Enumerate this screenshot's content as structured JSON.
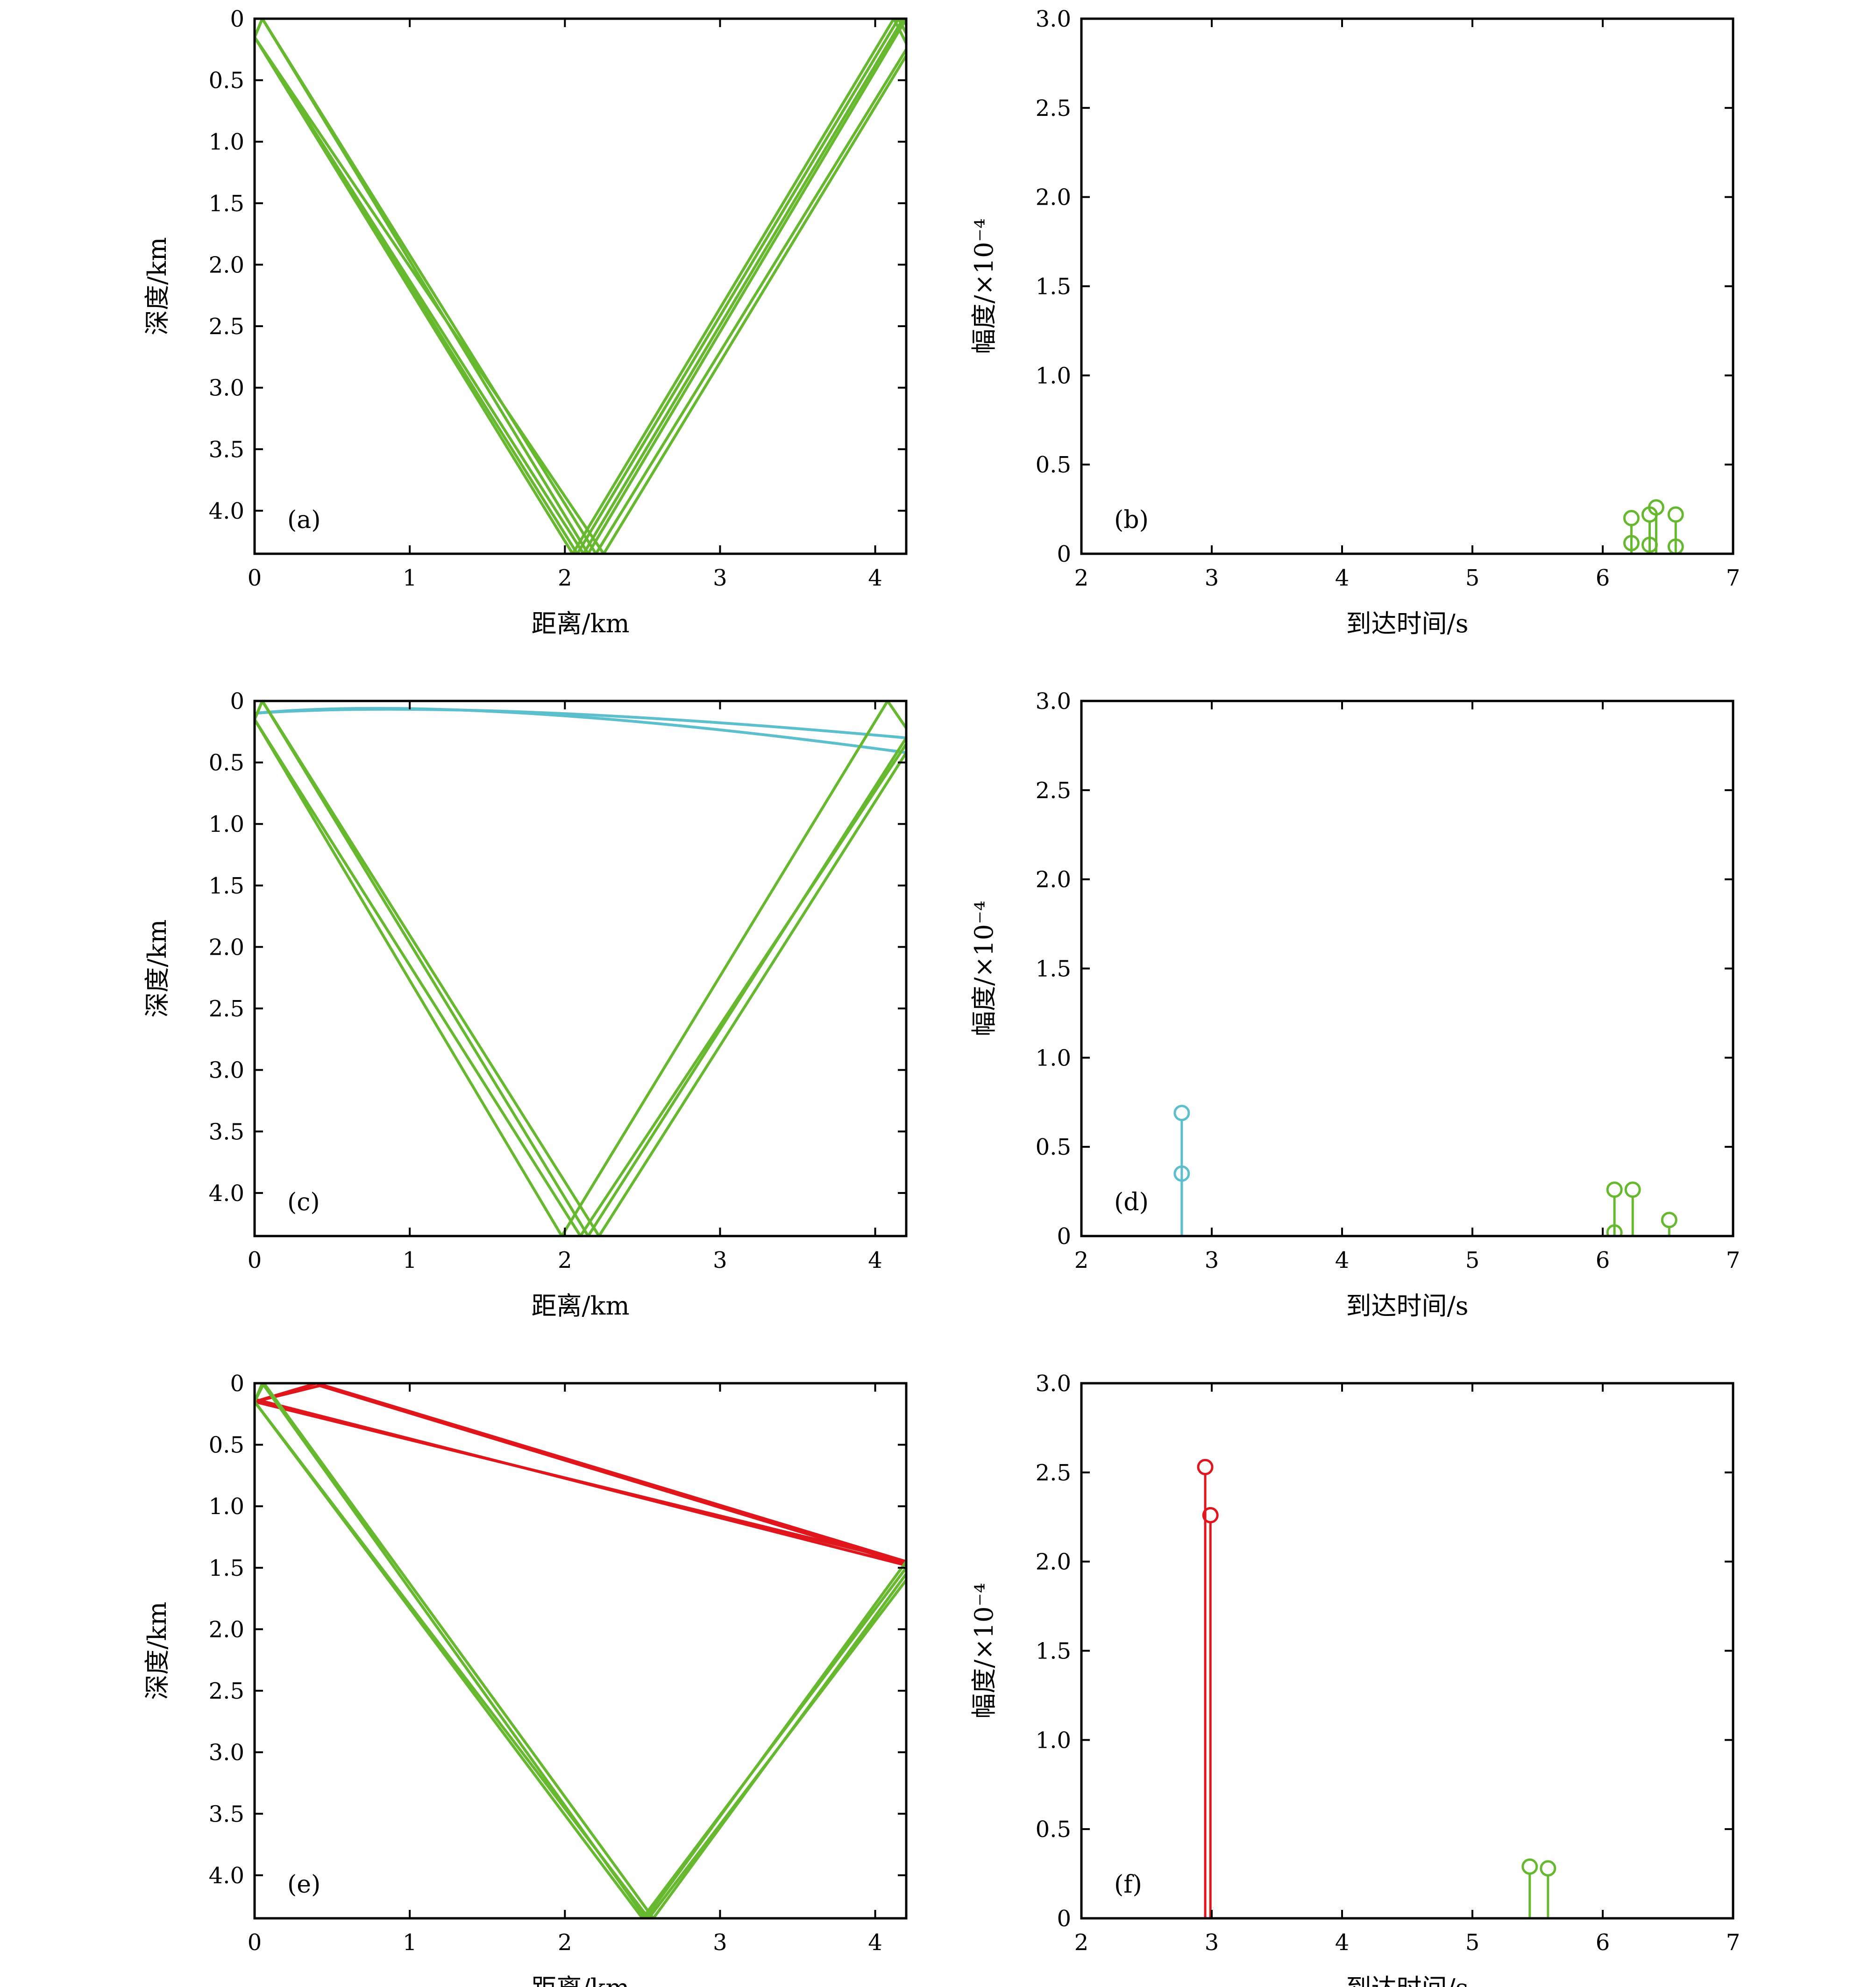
{
  "colors": {
    "green": "#66b82e",
    "cyan": "#5bbfcd",
    "red": "#e0161c"
  },
  "chart_data": [
    {
      "type": "line",
      "panel": "(a)",
      "kind": "rays",
      "xlabel": "距离/km",
      "ylabel": "深度/km",
      "xlim": [
        0,
        4.2
      ],
      "ylim": [
        4.35,
        0
      ],
      "y_inverted": true,
      "xticks": [
        0,
        1,
        2,
        3,
        4
      ],
      "xtick_labels": [
        "0",
        "1",
        "2",
        "3",
        "4"
      ],
      "yticks": [
        0,
        0.5,
        1.0,
        1.5,
        2.0,
        2.5,
        3.0,
        3.5,
        4.0
      ],
      "ytick_labels": [
        "0",
        "0.5",
        "1.0",
        "1.5",
        "2.0",
        "2.5",
        "3.0",
        "3.5",
        "4.0"
      ],
      "series": [
        {
          "color": "green",
          "points": [
            [
              0,
              0.15
            ],
            [
              0.05,
              0
            ],
            [
              2.15,
              4.35
            ],
            [
              4.2,
              0
            ]
          ]
        },
        {
          "color": "green",
          "points": [
            [
              0,
              0.15
            ],
            [
              2.08,
              4.35
            ],
            [
              4.15,
              0
            ],
            [
              4.2,
              0.12
            ]
          ]
        },
        {
          "color": "green",
          "points": [
            [
              0,
              0.15
            ],
            [
              2.05,
              4.35
            ],
            [
              4.12,
              0
            ],
            [
              4.2,
              0.2
            ]
          ]
        },
        {
          "color": "green",
          "points": [
            [
              0,
              0.15
            ],
            [
              0.05,
              0
            ],
            [
              2.2,
              4.35
            ],
            [
              4.2,
              0.25
            ]
          ]
        },
        {
          "color": "green",
          "points": [
            [
              0,
              0.15
            ],
            [
              2.12,
              4.35
            ],
            [
              4.18,
              0
            ],
            [
              4.2,
              0.05
            ]
          ]
        },
        {
          "color": "green",
          "points": [
            [
              0,
              0.15
            ],
            [
              2.25,
              4.35
            ],
            [
              4.2,
              0.3
            ]
          ]
        }
      ]
    },
    {
      "type": "stem",
      "panel": "(b)",
      "xlabel": "到达时间/s",
      "ylabel": "幅度/×10⁻⁴",
      "xlim": [
        2,
        7
      ],
      "ylim": [
        0,
        3.0
      ],
      "xticks": [
        2,
        3,
        4,
        5,
        6,
        7
      ],
      "xtick_labels": [
        "2",
        "3",
        "4",
        "5",
        "6",
        "7"
      ],
      "yticks": [
        0,
        0.5,
        1.0,
        1.5,
        2.0,
        2.5,
        3.0
      ],
      "ytick_labels": [
        "0",
        "0.5",
        "1.0",
        "1.5",
        "2.0",
        "2.5",
        "3.0"
      ],
      "stems": [
        {
          "x": 6.22,
          "y": 0.2,
          "color": "green"
        },
        {
          "x": 6.22,
          "y": 0.06,
          "color": "green"
        },
        {
          "x": 6.36,
          "y": 0.22,
          "color": "green"
        },
        {
          "x": 6.36,
          "y": 0.05,
          "color": "green"
        },
        {
          "x": 6.41,
          "y": 0.26,
          "color": "green"
        },
        {
          "x": 6.56,
          "y": 0.22,
          "color": "green"
        },
        {
          "x": 6.56,
          "y": 0.04,
          "color": "green"
        }
      ]
    },
    {
      "type": "line",
      "panel": "(c)",
      "kind": "rays",
      "xlabel": "距离/km",
      "ylabel": "深度/km",
      "xlim": [
        0,
        4.2
      ],
      "ylim": [
        4.35,
        0
      ],
      "y_inverted": true,
      "xticks": [
        0,
        1,
        2,
        3,
        4
      ],
      "xtick_labels": [
        "0",
        "1",
        "2",
        "3",
        "4"
      ],
      "yticks": [
        0,
        0.5,
        1.0,
        1.5,
        2.0,
        2.5,
        3.0,
        3.5,
        4.0
      ],
      "ytick_labels": [
        "0",
        "0.5",
        "1.0",
        "1.5",
        "2.0",
        "2.5",
        "3.0",
        "3.5",
        "4.0"
      ],
      "series": [
        {
          "color": "cyan",
          "curve": true,
          "points": [
            [
              0,
              0.1
            ],
            [
              1.4,
              -0.06
            ],
            [
              4.2,
              0.42
            ]
          ]
        },
        {
          "color": "cyan",
          "curve": true,
          "points": [
            [
              0,
              0.1
            ],
            [
              1.4,
              -0.02
            ],
            [
              4.2,
              0.3
            ]
          ]
        },
        {
          "color": "green",
          "points": [
            [
              0,
              0.15
            ],
            [
              0.05,
              0
            ],
            [
              2.15,
              4.35
            ],
            [
              4.2,
              0.3
            ]
          ]
        },
        {
          "color": "green",
          "points": [
            [
              0,
              0.15
            ],
            [
              1.98,
              4.35
            ],
            [
              4.08,
              0
            ],
            [
              4.2,
              0.22
            ]
          ]
        },
        {
          "color": "green",
          "points": [
            [
              0,
              0.15
            ],
            [
              2.1,
              4.35
            ],
            [
              4.2,
              0.35
            ]
          ]
        },
        {
          "color": "green",
          "points": [
            [
              0,
              0.15
            ],
            [
              0.05,
              0
            ],
            [
              2.22,
              4.35
            ],
            [
              4.2,
              0.42
            ]
          ]
        }
      ]
    },
    {
      "type": "stem",
      "panel": "(d)",
      "xlabel": "到达时间/s",
      "ylabel": "幅度/×10⁻⁴",
      "xlim": [
        2,
        7
      ],
      "ylim": [
        0,
        3.0
      ],
      "xticks": [
        2,
        3,
        4,
        5,
        6,
        7
      ],
      "xtick_labels": [
        "2",
        "3",
        "4",
        "5",
        "6",
        "7"
      ],
      "yticks": [
        0,
        0.5,
        1.0,
        1.5,
        2.0,
        2.5,
        3.0
      ],
      "ytick_labels": [
        "0",
        "0.5",
        "1.0",
        "1.5",
        "2.0",
        "2.5",
        "3.0"
      ],
      "stems": [
        {
          "x": 2.77,
          "y": 0.69,
          "color": "cyan"
        },
        {
          "x": 2.77,
          "y": 0.35,
          "color": "cyan"
        },
        {
          "x": 6.09,
          "y": 0.26,
          "color": "green"
        },
        {
          "x": 6.09,
          "y": 0.02,
          "color": "green"
        },
        {
          "x": 6.23,
          "y": 0.26,
          "color": "green"
        },
        {
          "x": 6.51,
          "y": 0.09,
          "color": "green"
        }
      ]
    },
    {
      "type": "line",
      "panel": "(e)",
      "kind": "rays",
      "xlabel": "距离/km",
      "ylabel": "深度/km",
      "xlim": [
        0,
        4.2
      ],
      "ylim": [
        4.35,
        0
      ],
      "y_inverted": true,
      "xticks": [
        0,
        1,
        2,
        3,
        4
      ],
      "xtick_labels": [
        "0",
        "1",
        "2",
        "3",
        "4"
      ],
      "yticks": [
        0,
        0.5,
        1.0,
        1.5,
        2.0,
        2.5,
        3.0,
        3.5,
        4.0
      ],
      "ytick_labels": [
        "0",
        "0.5",
        "1.0",
        "1.5",
        "2.0",
        "2.5",
        "3.0",
        "3.5",
        "4.0"
      ],
      "series": [
        {
          "color": "red",
          "points": [
            [
              0,
              0.15
            ],
            [
              0.4,
              0
            ],
            [
              4.2,
              1.45
            ]
          ]
        },
        {
          "color": "red",
          "points": [
            [
              0,
              0.15
            ],
            [
              0.42,
              0.02
            ],
            [
              4.2,
              1.47
            ]
          ]
        },
        {
          "color": "red",
          "points": [
            [
              0,
              0.15
            ],
            [
              4.2,
              1.45
            ]
          ]
        },
        {
          "color": "red",
          "points": [
            [
              0,
              0.13
            ],
            [
              4.2,
              1.48
            ]
          ]
        },
        {
          "color": "green",
          "points": [
            [
              0,
              0.15
            ],
            [
              0.05,
              0
            ],
            [
              2.52,
              4.35
            ],
            [
              4.2,
              1.45
            ]
          ]
        },
        {
          "color": "green",
          "points": [
            [
              0,
              0.15
            ],
            [
              2.5,
              4.35
            ],
            [
              4.2,
              1.5
            ]
          ]
        },
        {
          "color": "green",
          "points": [
            [
              0,
              0.15
            ],
            [
              0.06,
              0
            ],
            [
              2.57,
              4.35
            ],
            [
              4.2,
              1.55
            ]
          ]
        },
        {
          "color": "green",
          "points": [
            [
              0,
              0.15
            ],
            [
              2.54,
              4.35
            ],
            [
              4.2,
              1.6
            ]
          ]
        }
      ]
    },
    {
      "type": "stem",
      "panel": "(f)",
      "xlabel": "到达时间/s",
      "ylabel": "幅度/×10⁻⁴",
      "xlim": [
        2,
        7
      ],
      "ylim": [
        0,
        3.0
      ],
      "xticks": [
        2,
        3,
        4,
        5,
        6,
        7
      ],
      "xtick_labels": [
        "2",
        "3",
        "4",
        "5",
        "6",
        "7"
      ],
      "yticks": [
        0,
        0.5,
        1.0,
        1.5,
        2.0,
        2.5,
        3.0
      ],
      "ytick_labels": [
        "0",
        "0.5",
        "1.0",
        "1.5",
        "2.0",
        "2.5",
        "3.0"
      ],
      "stems": [
        {
          "x": 2.95,
          "y": 2.53,
          "color": "red"
        },
        {
          "x": 2.99,
          "y": 2.26,
          "color": "red"
        },
        {
          "x": 5.44,
          "y": 0.29,
          "color": "green"
        },
        {
          "x": 5.58,
          "y": 0.28,
          "color": "green"
        }
      ]
    }
  ]
}
